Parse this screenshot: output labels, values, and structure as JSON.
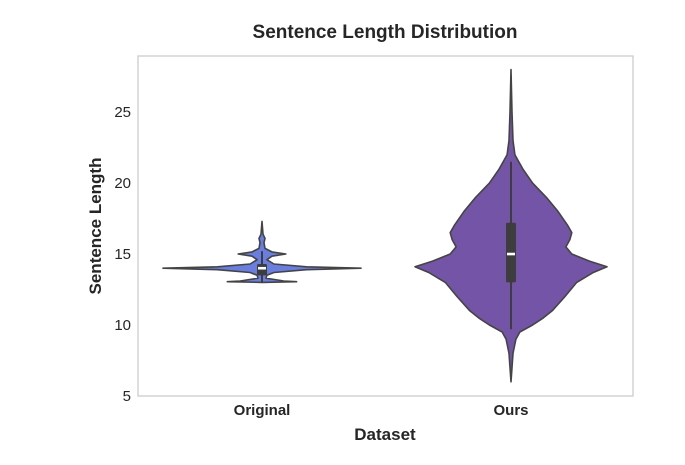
{
  "chart_data": {
    "type": "violin",
    "title": "Sentence Length Distribution",
    "xlabel": "Dataset",
    "ylabel": "Sentence Length",
    "categories": [
      "Original",
      "Ours"
    ],
    "yticks": [
      5,
      10,
      15,
      20,
      25
    ],
    "ylim": [
      5,
      29
    ],
    "grid": false,
    "legend": "none",
    "series": [
      {
        "color": "#6a7ee0",
        "min": 13,
        "max": 17.3,
        "q1": 13.5,
        "median": 14,
        "q3": 14.3,
        "whisker_low": 13,
        "whisker_high": 15.2,
        "density": [
          [
            13.0,
            0.0
          ],
          [
            13.05,
            0.35
          ],
          [
            13.1,
            0.22
          ],
          [
            13.3,
            0.04
          ],
          [
            13.5,
            0.05
          ],
          [
            13.7,
            0.12
          ],
          [
            13.9,
            0.45
          ],
          [
            14.0,
            1.0
          ],
          [
            14.1,
            0.45
          ],
          [
            14.3,
            0.12
          ],
          [
            14.6,
            0.05
          ],
          [
            14.85,
            0.1
          ],
          [
            15.0,
            0.24
          ],
          [
            15.15,
            0.1
          ],
          [
            15.4,
            0.03
          ],
          [
            15.8,
            0.02
          ],
          [
            16.1,
            0.03
          ],
          [
            16.4,
            0.01
          ],
          [
            17.3,
            0.0
          ]
        ]
      },
      {
        "color": "#7454a6",
        "min": 6,
        "max": 28,
        "q1": 13,
        "median": 15,
        "q3": 17.2,
        "whisker_low": 9.7,
        "whisker_high": 21.5,
        "density": [
          [
            6.0,
            0.0
          ],
          [
            8.0,
            0.02
          ],
          [
            9.0,
            0.05
          ],
          [
            9.5,
            0.09
          ],
          [
            10.0,
            0.22
          ],
          [
            10.5,
            0.33
          ],
          [
            11.0,
            0.42
          ],
          [
            12.0,
            0.55
          ],
          [
            13.0,
            0.67
          ],
          [
            13.7,
            0.84
          ],
          [
            14.1,
            0.98
          ],
          [
            14.5,
            0.8
          ],
          [
            15.0,
            0.62
          ],
          [
            15.5,
            0.56
          ],
          [
            16.0,
            0.6
          ],
          [
            16.5,
            0.62
          ],
          [
            17.0,
            0.58
          ],
          [
            18.0,
            0.48
          ],
          [
            19.0,
            0.36
          ],
          [
            20.0,
            0.22
          ],
          [
            21.0,
            0.12
          ],
          [
            21.5,
            0.08
          ],
          [
            22.0,
            0.04
          ],
          [
            23.0,
            0.02
          ],
          [
            25.0,
            0.01
          ],
          [
            28.0,
            0.0
          ]
        ]
      }
    ]
  }
}
